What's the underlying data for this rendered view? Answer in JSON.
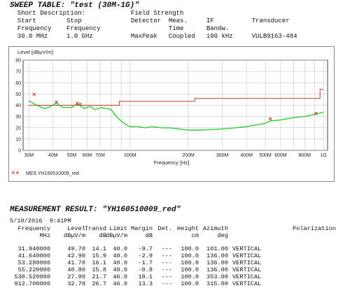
{
  "sweep": {
    "title": "SWEEP TABLE: \"test (30M-1G)\"",
    "line1": "  Short Description:            Field Strength",
    "line2": "  Start        Stop             Detector  Meas.     IF          Transducer",
    "line3": "  Frequency    Frequency                  Time      Bandw.",
    "line4": "  30.0 MHz     1.0 GHz          MaxPeak   Coupled   100 kHz     VULB9163-484"
  },
  "chart_data": {
    "type": "line",
    "ylabel": "Level [dBµV/m]",
    "xlabel": "Frequency [Hz]",
    "x_scale": "log",
    "xlim_mhz": [
      28,
      1050
    ],
    "ylim": [
      0,
      80
    ],
    "yticks": [
      "80",
      "70",
      "60",
      "50",
      "40",
      "30",
      "20",
      "10",
      "0"
    ],
    "xticks": [
      {
        "label": "30M",
        "mhz": 30
      },
      {
        "label": "40M",
        "mhz": 40
      },
      {
        "label": "50M",
        "mhz": 50
      },
      {
        "label": "60M",
        "mhz": 60
      },
      {
        "label": "70M",
        "mhz": 70
      },
      {
        "label": "100M",
        "mhz": 100
      },
      {
        "label": "200M",
        "mhz": 200
      },
      {
        "label": "300M",
        "mhz": 300
      },
      {
        "label": "400M",
        "mhz": 400
      },
      {
        "label": "500M",
        "mhz": 500
      },
      {
        "label": "600M",
        "mhz": 600
      },
      {
        "label": "800M",
        "mhz": 800
      },
      {
        "label": "1G",
        "mhz": 1000
      }
    ],
    "grid": true,
    "limit_line": {
      "color": "#c0392b",
      "points": [
        [
          30,
          40
        ],
        [
          88,
          40
        ],
        [
          88,
          43.5
        ],
        [
          216,
          43.5
        ],
        [
          216,
          46
        ],
        [
          960,
          46
        ],
        [
          960,
          54
        ],
        [
          1000,
          54
        ]
      ]
    },
    "sweep_trace": {
      "color": "#33cc33",
      "points": [
        [
          30,
          44
        ],
        [
          33,
          40
        ],
        [
          36,
          37
        ],
        [
          38,
          38
        ],
        [
          41.6,
          42
        ],
        [
          45,
          38
        ],
        [
          50,
          38
        ],
        [
          53,
          41
        ],
        [
          55,
          40
        ],
        [
          58,
          37
        ],
        [
          62,
          39
        ],
        [
          66,
          36
        ],
        [
          71,
          38
        ],
        [
          76,
          37
        ],
        [
          80,
          36
        ],
        [
          85,
          30
        ],
        [
          90,
          26
        ],
        [
          95,
          23
        ],
        [
          100,
          21
        ],
        [
          110,
          21
        ],
        [
          120,
          20
        ],
        [
          130,
          21
        ],
        [
          145,
          20
        ],
        [
          160,
          20
        ],
        [
          180,
          19
        ],
        [
          200,
          18
        ],
        [
          230,
          18
        ],
        [
          260,
          18.5
        ],
        [
          300,
          19
        ],
        [
          350,
          20
        ],
        [
          400,
          21
        ],
        [
          450,
          22.5
        ],
        [
          500,
          24
        ],
        [
          530,
          26
        ],
        [
          600,
          27
        ],
        [
          700,
          29
        ],
        [
          800,
          30
        ],
        [
          900,
          32
        ],
        [
          960,
          33
        ],
        [
          1000,
          34
        ]
      ]
    },
    "final_points": {
      "color": "#c0392b",
      "points": [
        [
          31.94,
          49.7
        ],
        [
          41.64,
          42.9
        ],
        [
          53.28,
          41.7
        ],
        [
          55.22,
          40.8
        ],
        [
          530.52,
          27.9
        ],
        [
          912.7,
          32.7
        ]
      ]
    },
    "legend": [
      "MES  YH160510009_red"
    ],
    "legend_color": "#c0392b"
  },
  "measurement": {
    "title": "MEASUREMENT RESULT: \"YH160510009_red\"",
    "datetime": "5/10/2016  9:41PM",
    "headers": [
      [
        "Frequency",
        "MHz"
      ],
      [
        "Level",
        "dBµV/m"
      ],
      [
        "Transd",
        "dB"
      ],
      [
        "Limit",
        "dBµV/m"
      ],
      [
        "Margin",
        "dB"
      ],
      [
        "Det.",
        ""
      ],
      [
        "Height",
        "cm"
      ],
      [
        "Azimuth",
        "deg"
      ],
      [
        "Polarization",
        ""
      ]
    ],
    "rows": [
      [
        "31.940000",
        "49.70",
        "14.1",
        "40.0",
        "-9.7",
        "---",
        "100.0",
        "101.00",
        "VERTICAL"
      ],
      [
        "41.640000",
        "42.90",
        "15.9",
        "40.0",
        "-2.9",
        "---",
        "100.0",
        "136.00",
        "VERTICAL"
      ],
      [
        "53.280000",
        "41.70",
        "16.1",
        "40.0",
        "-1.7",
        "---",
        "100.0",
        "136.00",
        "VERTICAL"
      ],
      [
        "55.220000",
        "40.80",
        "15.8",
        "40.0",
        "-0.8",
        "---",
        "100.0",
        "136.00",
        "VERTICAL"
      ],
      [
        "530.520000",
        "27.90",
        "21.7",
        "46.0",
        "18.1",
        "---",
        "100.0",
        "353.00",
        "VERTICAL"
      ],
      [
        "912.700000",
        "32.70",
        "26.7",
        "46.0",
        "13.3",
        "---",
        "100.0",
        "315.00",
        "VERTICAL"
      ]
    ]
  }
}
